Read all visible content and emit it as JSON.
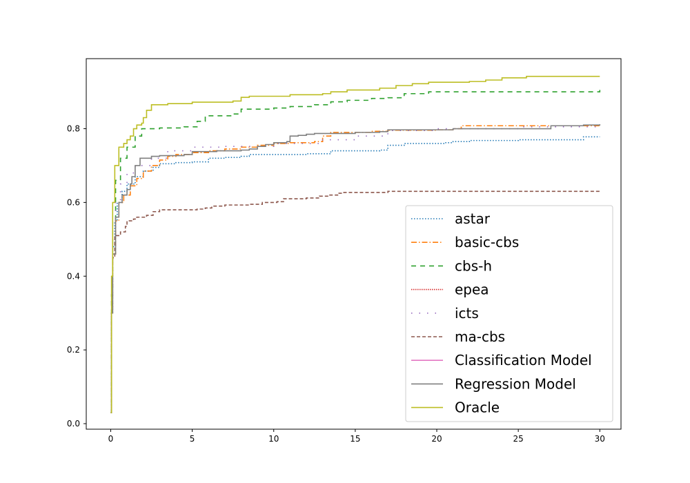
{
  "chart_data": {
    "type": "line",
    "title": "",
    "xlabel": "",
    "ylabel": "",
    "xlim": [
      -1.5,
      31.3
    ],
    "ylim": [
      -0.015,
      0.99
    ],
    "xticks": [
      0,
      5,
      10,
      15,
      20,
      25,
      30
    ],
    "yticks": [
      0.0,
      0.2,
      0.4,
      0.6,
      0.8
    ],
    "grid": false,
    "legend_placement": "lower-right",
    "series": [
      {
        "name": "astar",
        "color": "#1f77b4",
        "dash": "dotted",
        "points": [
          [
            0,
            0.03
          ],
          [
            0.05,
            0.3
          ],
          [
            0.12,
            0.48
          ],
          [
            0.25,
            0.55
          ],
          [
            0.4,
            0.6
          ],
          [
            0.7,
            0.63
          ],
          [
            1.0,
            0.65
          ],
          [
            1.5,
            0.67
          ],
          [
            2.0,
            0.685
          ],
          [
            2.6,
            0.695
          ],
          [
            3.0,
            0.705
          ],
          [
            4.0,
            0.708
          ],
          [
            5.0,
            0.71
          ],
          [
            6.0,
            0.72
          ],
          [
            7.0,
            0.722
          ],
          [
            8.0,
            0.725
          ],
          [
            8.5,
            0.73
          ],
          [
            10.0,
            0.73
          ],
          [
            12.0,
            0.732
          ],
          [
            13.5,
            0.74
          ],
          [
            16.5,
            0.742
          ],
          [
            17.0,
            0.755
          ],
          [
            18.0,
            0.76
          ],
          [
            20.5,
            0.762
          ],
          [
            21.0,
            0.765
          ],
          [
            22.0,
            0.768
          ],
          [
            25.0,
            0.77
          ],
          [
            28.5,
            0.77
          ],
          [
            29.0,
            0.778
          ],
          [
            30,
            0.778
          ]
        ]
      },
      {
        "name": "basic-cbs",
        "color": "#ff7f0e",
        "dash": "dashdot",
        "points": [
          [
            0,
            0.03
          ],
          [
            0.05,
            0.3
          ],
          [
            0.12,
            0.46
          ],
          [
            0.3,
            0.55
          ],
          [
            0.5,
            0.6
          ],
          [
            0.8,
            0.62
          ],
          [
            1.2,
            0.645
          ],
          [
            1.6,
            0.665
          ],
          [
            2.0,
            0.685
          ],
          [
            2.5,
            0.7
          ],
          [
            3.0,
            0.715
          ],
          [
            3.5,
            0.725
          ],
          [
            4.0,
            0.73
          ],
          [
            5.0,
            0.735
          ],
          [
            6.0,
            0.74
          ],
          [
            7.0,
            0.745
          ],
          [
            8.0,
            0.75
          ],
          [
            9.0,
            0.755
          ],
          [
            10.0,
            0.76
          ],
          [
            11.0,
            0.762
          ],
          [
            12.5,
            0.765
          ],
          [
            13.0,
            0.78
          ],
          [
            13.5,
            0.79
          ],
          [
            16.0,
            0.793
          ],
          [
            17.0,
            0.796
          ],
          [
            20.0,
            0.797
          ],
          [
            21.0,
            0.8
          ],
          [
            21.5,
            0.808
          ],
          [
            27.0,
            0.808
          ],
          [
            30,
            0.808
          ]
        ]
      },
      {
        "name": "cbs-h",
        "color": "#2ca02c",
        "dash": "dashed",
        "points": [
          [
            0,
            0.03
          ],
          [
            0.05,
            0.35
          ],
          [
            0.12,
            0.55
          ],
          [
            0.3,
            0.66
          ],
          [
            0.6,
            0.72
          ],
          [
            1.0,
            0.75
          ],
          [
            1.5,
            0.78
          ],
          [
            1.9,
            0.8
          ],
          [
            3.0,
            0.802
          ],
          [
            4.5,
            0.805
          ],
          [
            5.3,
            0.82
          ],
          [
            5.8,
            0.835
          ],
          [
            7.5,
            0.84
          ],
          [
            8.0,
            0.853
          ],
          [
            10.0,
            0.856
          ],
          [
            11.0,
            0.86
          ],
          [
            12.5,
            0.865
          ],
          [
            13.5,
            0.873
          ],
          [
            14.5,
            0.877
          ],
          [
            16.0,
            0.882
          ],
          [
            17.0,
            0.884
          ],
          [
            18.0,
            0.895
          ],
          [
            19.5,
            0.9
          ],
          [
            30,
            0.905
          ]
        ]
      },
      {
        "name": "epea",
        "color": "#d62728",
        "dash": "densedot",
        "points": []
      },
      {
        "name": "icts",
        "color": "#9467bd",
        "dash": "sparsedot",
        "points": [
          [
            0,
            0.03
          ],
          [
            0.05,
            0.35
          ],
          [
            0.12,
            0.5
          ],
          [
            0.3,
            0.6
          ],
          [
            0.6,
            0.65
          ],
          [
            1.0,
            0.68
          ],
          [
            1.5,
            0.7
          ],
          [
            2.5,
            0.72
          ],
          [
            3.5,
            0.74
          ],
          [
            5.0,
            0.75
          ],
          [
            7.0,
            0.752
          ],
          [
            10.0,
            0.76
          ],
          [
            13.0,
            0.77
          ],
          [
            15.0,
            0.78
          ],
          [
            17.0,
            0.795
          ],
          [
            20.0,
            0.8
          ],
          [
            25.0,
            0.805
          ],
          [
            30,
            0.812
          ]
        ]
      },
      {
        "name": "ma-cbs",
        "color": "#8c564b",
        "dash": "dashed2",
        "points": [
          [
            0,
            0.03
          ],
          [
            0.05,
            0.3
          ],
          [
            0.12,
            0.45
          ],
          [
            0.25,
            0.51
          ],
          [
            0.6,
            0.52
          ],
          [
            0.9,
            0.535
          ],
          [
            1.0,
            0.55
          ],
          [
            1.4,
            0.555
          ],
          [
            1.6,
            0.56
          ],
          [
            2.2,
            0.565
          ],
          [
            2.6,
            0.575
          ],
          [
            3.0,
            0.58
          ],
          [
            5.3,
            0.582
          ],
          [
            5.8,
            0.585
          ],
          [
            6.2,
            0.59
          ],
          [
            7.0,
            0.593
          ],
          [
            8.5,
            0.595
          ],
          [
            9.3,
            0.6
          ],
          [
            10.2,
            0.602
          ],
          [
            10.6,
            0.61
          ],
          [
            12.0,
            0.612
          ],
          [
            12.8,
            0.617
          ],
          [
            13.4,
            0.62
          ],
          [
            14.0,
            0.625
          ],
          [
            14.3,
            0.627
          ],
          [
            17.0,
            0.63
          ],
          [
            30,
            0.63
          ]
        ]
      },
      {
        "name": "Classification Model",
        "color": "#e377c2",
        "dash": "solid",
        "points": []
      },
      {
        "name": "Regression Model",
        "color": "#7f7f7f",
        "dash": "solid",
        "points": [
          [
            0,
            0.03
          ],
          [
            0.05,
            0.3
          ],
          [
            0.12,
            0.46
          ],
          [
            0.3,
            0.56
          ],
          [
            0.5,
            0.6
          ],
          [
            0.7,
            0.62
          ],
          [
            1.0,
            0.635
          ],
          [
            1.2,
            0.65
          ],
          [
            1.3,
            0.67
          ],
          [
            1.5,
            0.7
          ],
          [
            1.8,
            0.72
          ],
          [
            2.5,
            0.725
          ],
          [
            3.0,
            0.727
          ],
          [
            4.5,
            0.73
          ],
          [
            5.0,
            0.738
          ],
          [
            6.5,
            0.74
          ],
          [
            8.0,
            0.742
          ],
          [
            8.5,
            0.745
          ],
          [
            9.0,
            0.752
          ],
          [
            9.5,
            0.757
          ],
          [
            10.0,
            0.762
          ],
          [
            10.8,
            0.765
          ],
          [
            11.0,
            0.78
          ],
          [
            11.5,
            0.782
          ],
          [
            12.0,
            0.785
          ],
          [
            12.5,
            0.787
          ],
          [
            15.0,
            0.79
          ],
          [
            16.5,
            0.792
          ],
          [
            17.0,
            0.797
          ],
          [
            20.0,
            0.797
          ],
          [
            21.0,
            0.8
          ],
          [
            27.0,
            0.808
          ],
          [
            29.0,
            0.81
          ],
          [
            30,
            0.812
          ]
        ]
      },
      {
        "name": "Oracle",
        "color": "#bcbd22",
        "dash": "solid",
        "points": [
          [
            0,
            0.03
          ],
          [
            0.05,
            0.4
          ],
          [
            0.12,
            0.6
          ],
          [
            0.25,
            0.7
          ],
          [
            0.5,
            0.75
          ],
          [
            0.8,
            0.76
          ],
          [
            1.0,
            0.77
          ],
          [
            1.2,
            0.78
          ],
          [
            1.4,
            0.8
          ],
          [
            1.6,
            0.81
          ],
          [
            1.9,
            0.815
          ],
          [
            2.0,
            0.83
          ],
          [
            2.2,
            0.85
          ],
          [
            2.5,
            0.865
          ],
          [
            3.5,
            0.868
          ],
          [
            5.0,
            0.872
          ],
          [
            7.5,
            0.875
          ],
          [
            8.0,
            0.885
          ],
          [
            8.5,
            0.888
          ],
          [
            11.0,
            0.892
          ],
          [
            13.0,
            0.895
          ],
          [
            13.5,
            0.9
          ],
          [
            14.5,
            0.905
          ],
          [
            16.5,
            0.91
          ],
          [
            17.5,
            0.917
          ],
          [
            18.5,
            0.922
          ],
          [
            19.5,
            0.926
          ],
          [
            22.0,
            0.928
          ],
          [
            23.0,
            0.932
          ],
          [
            24.0,
            0.938
          ],
          [
            25.5,
            0.942
          ],
          [
            30,
            0.942
          ]
        ]
      }
    ]
  }
}
